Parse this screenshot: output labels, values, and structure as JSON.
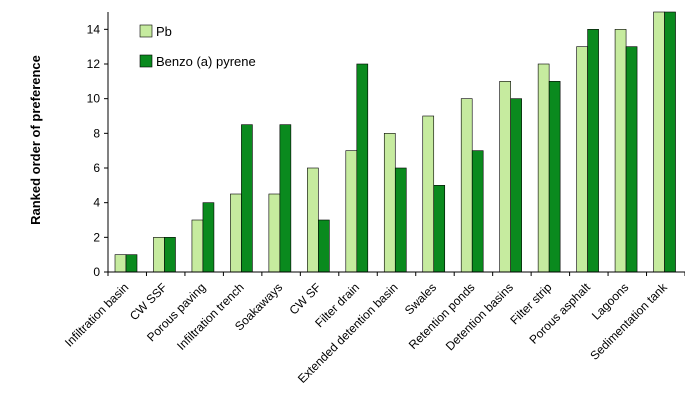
{
  "chart_data": {
    "type": "bar",
    "title": "",
    "xlabel": "",
    "ylabel": "Ranked order of preference",
    "ylim": [
      0,
      15
    ],
    "yticks": [
      0,
      2,
      4,
      6,
      8,
      10,
      12,
      14
    ],
    "grid": false,
    "legend_position": "top-left",
    "categories": [
      "Infiltration basin",
      "CW SSF",
      "Porous paving",
      "Infiltration trench",
      "Soakaways",
      "CW SF",
      "Filter drain",
      "Extended detention basin",
      "Swales",
      "Retention ponds",
      "Detention basins",
      "Filter strip",
      "Porous asphalt",
      "Lagoons",
      "Sedimentation tank"
    ],
    "series": [
      {
        "name": "Pb",
        "color": "#c6eb9f",
        "values": [
          1,
          2,
          3,
          4.5,
          4.5,
          6,
          7,
          8,
          9,
          10,
          11,
          12,
          13,
          14,
          15
        ]
      },
      {
        "name": "Benzo (a) pyrene",
        "color": "#0a8a1e",
        "values": [
          1,
          2,
          4,
          8.5,
          8.5,
          3,
          12,
          6,
          5,
          7,
          10,
          11,
          14,
          13,
          15
        ]
      }
    ]
  }
}
